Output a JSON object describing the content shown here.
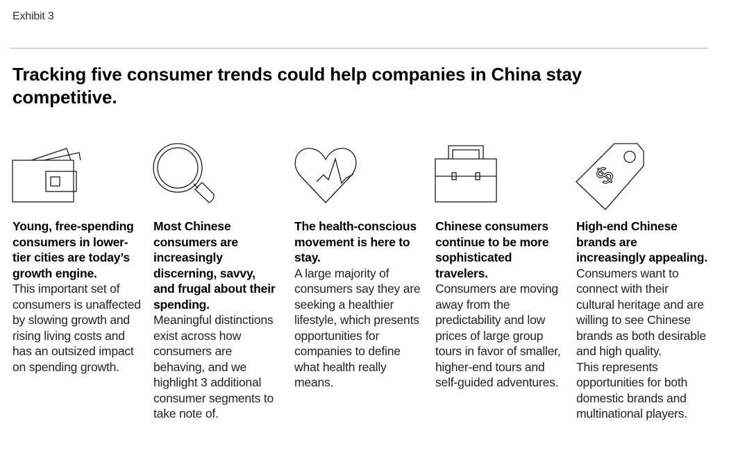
{
  "exhibit": {
    "label": "Exhibit 3"
  },
  "title": "Tracking five consumer trends could help companies in China stay competitive.",
  "trends": [
    {
      "icon": "wallet-icon",
      "heading": "Young, free-spending consumers in lower-tier cities are today’s growth engine.",
      "body": [
        "This important set of consumers is unaffected by slowing growth and rising living costs and has an outsized impact on spending growth."
      ]
    },
    {
      "icon": "magnifying-glass-icon",
      "heading": "Most Chinese consumers are increasingly discerning, savvy, and frugal about their spending.",
      "body": [
        "Meaningful distinctions exist across how consumers are behaving, and we highlight 3 additional consumer segments to take note of."
      ]
    },
    {
      "icon": "heart-pulse-icon",
      "heading": "The health-conscious movement is here to stay.",
      "body": [
        "A large majority of consumers say they are seeking a healthier lifestyle, which presents opportunities for companies to define what health really means."
      ]
    },
    {
      "icon": "suitcase-icon",
      "heading": "Chinese consumers continue to be more sophisticated travelers.",
      "body": [
        "Consumers are moving away from the predictability and low prices of large group tours in favor of smaller, higher-end tours and self-guided adventures."
      ]
    },
    {
      "icon": "price-tag-icon",
      "heading": "High-end Chinese brands are increasingly appealing.",
      "body": [
        "Consumers want to connect with their cultural heritage and are willing to see Chinese brands as both desirable and high quality.",
        "This represents opportunities for both domestic brands and multinational players."
      ]
    }
  ]
}
